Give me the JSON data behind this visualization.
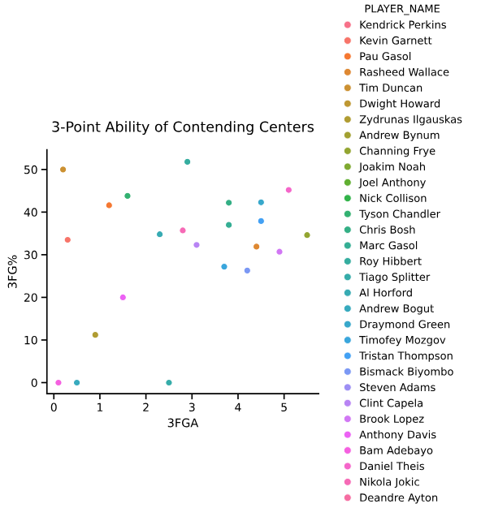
{
  "chart_data": {
    "type": "scatter",
    "title": "3-Point Ability of Contending Centers",
    "xlabel": "3FGA",
    "ylabel": "3FG%",
    "legend_title": "PLAYER_NAME",
    "legend": "right",
    "marker": "circle",
    "grid": false,
    "xlim": [
      -0.15,
      5.75
    ],
    "ylim": [
      -2.6,
      54.6
    ],
    "xticks": [
      0,
      1,
      2,
      3,
      4,
      5
    ],
    "yticks": [
      0,
      10,
      20,
      30,
      40,
      50
    ],
    "series": [
      {
        "name": "Kendrick Perkins",
        "color": "#f77189"
      },
      {
        "name": "Kevin Garnett",
        "color": "#f77469",
        "x": [
          0.3
        ],
        "values": [
          33.5
        ]
      },
      {
        "name": "Pau Gasol",
        "color": "#f57832",
        "x": [
          1.2
        ],
        "values": [
          41.6
        ]
      },
      {
        "name": "Rasheed Wallace",
        "color": "#de8832",
        "x": [
          4.4
        ],
        "values": [
          31.9
        ]
      },
      {
        "name": "Tim Duncan",
        "color": "#cc9132",
        "x": [
          0.2
        ],
        "values": [
          50
        ]
      },
      {
        "name": "Dwight Howard",
        "color": "#be9732"
      },
      {
        "name": "Zydrunas Ilgauskas",
        "color": "#b09c32",
        "x": [
          0.9
        ],
        "values": [
          11.2
        ]
      },
      {
        "name": "Andrew Bynum",
        "color": "#a2a031"
      },
      {
        "name": "Channing Frye",
        "color": "#93a531",
        "x": [
          5.5
        ],
        "values": [
          34.6
        ]
      },
      {
        "name": "Joakim Noah",
        "color": "#7fa931"
      },
      {
        "name": "Joel Anthony",
        "color": "#60af31"
      },
      {
        "name": "Nick Collison",
        "color": "#32b349"
      },
      {
        "name": "Tyson Chandler",
        "color": "#33b171",
        "x": [
          1.6
        ],
        "values": [
          43.8
        ]
      },
      {
        "name": "Chris Bosh",
        "color": "#34af85",
        "x": [
          3.8
        ],
        "values": [
          42.2
        ]
      },
      {
        "name": "Marc Gasol",
        "color": "#35ae94",
        "x": [
          3.8
        ],
        "values": [
          37.0
        ]
      },
      {
        "name": "Roy Hibbert",
        "color": "#35ad9f",
        "x": [
          2.9
        ],
        "values": [
          51.8
        ]
      },
      {
        "name": "Tiago Splitter",
        "color": "#36aca9",
        "x": [
          2.5
        ],
        "values": [
          0
        ]
      },
      {
        "name": "Al Horford",
        "color": "#37abb3",
        "x": [
          2.3
        ],
        "values": [
          34.8
        ]
      },
      {
        "name": "Andrew Bogut",
        "color": "#37aabe",
        "x": [
          0.5
        ],
        "values": [
          0
        ]
      },
      {
        "name": "Draymond Green",
        "color": "#38a8cb",
        "x": [
          4.5
        ],
        "values": [
          42.3
        ]
      },
      {
        "name": "Timofey Mozgov",
        "color": "#3aa6dc",
        "x": [
          3.7
        ],
        "values": [
          27.2
        ]
      },
      {
        "name": "Tristan Thompson",
        "color": "#43a1f4",
        "x": [
          4.5
        ],
        "values": [
          37.9
        ]
      },
      {
        "name": "Bismack Biyombo",
        "color": "#7b98f4",
        "x": [
          4.2
        ],
        "values": [
          26.3
        ]
      },
      {
        "name": "Steven Adams",
        "color": "#9d8ff4"
      },
      {
        "name": "Clint Capela",
        "color": "#b884f4",
        "x": [
          3.1
        ],
        "values": [
          32.3
        ]
      },
      {
        "name": "Brook Lopez",
        "color": "#d177f4",
        "x": [
          4.9
        ],
        "values": [
          30.7
        ]
      },
      {
        "name": "Anthony Davis",
        "color": "#ec62f4",
        "x": [
          1.5
        ],
        "values": [
          20.0
        ]
      },
      {
        "name": "Bam Adebayo",
        "color": "#f560e0",
        "x": [
          0.1
        ],
        "values": [
          0
        ]
      },
      {
        "name": "Daniel Theis",
        "color": "#f566ca",
        "x": [
          5.1
        ],
        "values": [
          45.2
        ]
      },
      {
        "name": "Nikola Jokic",
        "color": "#f66ab6",
        "x": [
          2.8
        ],
        "values": [
          35.7
        ]
      },
      {
        "name": "Deandre Ayton",
        "color": "#f66da2"
      }
    ]
  }
}
